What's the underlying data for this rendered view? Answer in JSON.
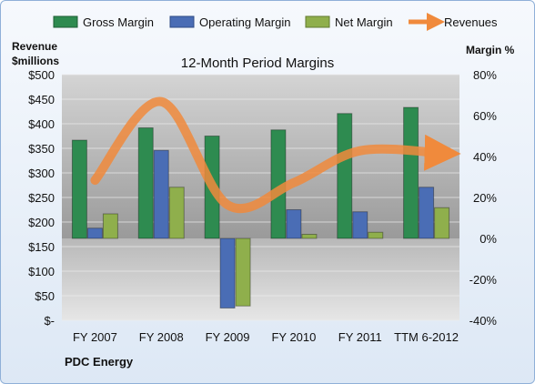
{
  "chart_data": {
    "type": "bar",
    "title": "12-Month Period Margins",
    "company": "PDC Energy",
    "left_axis_title": [
      "Revenue",
      "$millions"
    ],
    "right_axis_title": "Margin %",
    "categories": [
      "FY 2007",
      "FY 2008",
      "FY 2009",
      "FY 2010",
      "FY 2011",
      "TTM 6-2012"
    ],
    "left_ticks": [
      "$-",
      "$50",
      "$100",
      "$150",
      "$200",
      "$250",
      "$300",
      "$350",
      "$400",
      "$450",
      "$500"
    ],
    "right_ticks": [
      "-40%",
      "-20%",
      "0%",
      "20%",
      "40%",
      "60%",
      "80%"
    ],
    "left_ylim": [
      0,
      500
    ],
    "right_ylim": [
      -40,
      80
    ],
    "series": [
      {
        "name": "Gross Margin",
        "axis": "right",
        "color": "#2e8b50",
        "values": [
          48,
          54,
          50,
          53,
          61,
          64
        ]
      },
      {
        "name": "Operating Margin",
        "axis": "right",
        "color": "#4a6db5",
        "values": [
          5,
          43,
          -34,
          14,
          13,
          25
        ]
      },
      {
        "name": "Net Margin",
        "axis": "right",
        "color": "#8faf4c",
        "values": [
          12,
          25,
          -33,
          2,
          3,
          15
        ]
      }
    ],
    "line_series": {
      "name": "Revenues",
      "axis": "left",
      "color": "#f08a3c",
      "values": [
        285,
        445,
        235,
        280,
        345,
        340
      ]
    },
    "legend_position": "top",
    "grid": true
  }
}
